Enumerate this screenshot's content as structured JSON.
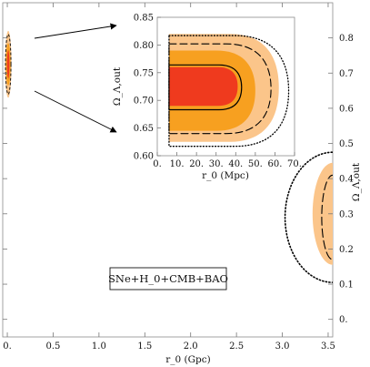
{
  "chart_data": [
    {
      "type": "contour",
      "id": "main",
      "xlabel": "r_0 (Gpc)",
      "ylabel": "Ω_Λ,out",
      "xlim": [
        -0.05,
        3.55
      ],
      "ylim": [
        -0.05,
        0.9
      ],
      "x_ticks": [
        "0.",
        "0.5",
        "1.0",
        "1.5",
        "2.0",
        "2.5",
        "3.0",
        "3.5"
      ],
      "x_tick_values": [
        0,
        0.5,
        1.0,
        1.5,
        2.0,
        2.5,
        3.0,
        3.5
      ],
      "y_ticks": [
        "0.",
        "0.1",
        "0.2",
        "0.3",
        "0.4",
        "0.5",
        "0.6",
        "0.7",
        "0.8"
      ],
      "y_tick_values": [
        0,
        0.1,
        0.2,
        0.3,
        0.4,
        0.5,
        0.6,
        0.7,
        0.8
      ],
      "y_axis_side": "right",
      "annotation": "SNe+H_0+CMB+BAO",
      "regions": [
        {
          "name": "near-zero-light",
          "cx": 0.01,
          "cy": 0.725,
          "rx": 0.035,
          "ry": 0.095,
          "color": "#fbc58a"
        },
        {
          "name": "near-zero-mid",
          "cx": 0.01,
          "cy": 0.725,
          "rx": 0.025,
          "ry": 0.06,
          "color": "#f7a020"
        },
        {
          "name": "near-zero-dark",
          "cx": 0.01,
          "cy": 0.725,
          "rx": 0.013,
          "ry": 0.04,
          "color": "#ef3a1e"
        },
        {
          "name": "large-r0-light",
          "center_r0": 3.55,
          "center_omega": 0.3,
          "r0_extent": 0.22,
          "omega_extent": 0.145,
          "color": "#fbc58a"
        },
        {
          "name": "large-r0-dashed",
          "center_r0": 3.55,
          "center_omega": 0.29,
          "r0_extent": 0.12,
          "omega_extent": 0.12,
          "style": "dashed"
        },
        {
          "name": "large-r0-dotted",
          "center_r0": 3.55,
          "center_omega": 0.29,
          "r0_extent": 0.52,
          "omega_extent": 0.185,
          "style": "dotted"
        }
      ]
    },
    {
      "type": "contour",
      "id": "inset",
      "xlabel": "r_0 (Mpc)",
      "ylabel": "Ω_Λ,out",
      "xlim": [
        0,
        70
      ],
      "ylim": [
        0.6,
        0.85
      ],
      "x_ticks": [
        "0.",
        "10.",
        "20.",
        "30.",
        "40.",
        "50.",
        "60.",
        "70."
      ],
      "x_tick_values": [
        0,
        10,
        20,
        30,
        40,
        50,
        60,
        70
      ],
      "y_ticks": [
        "0.60",
        "0.65",
        "0.70",
        "0.75",
        "0.80",
        "0.85"
      ],
      "y_tick_values": [
        0.6,
        0.65,
        0.7,
        0.75,
        0.8,
        0.85
      ],
      "y_axis_side": "left",
      "regions": [
        {
          "name": "inset-light",
          "x_start": 6,
          "x_end": 62,
          "y_low": 0.625,
          "y_high": 0.82,
          "color": "#fbc58a"
        },
        {
          "name": "inset-mid",
          "x_start": 6,
          "x_end": 50,
          "y_low": 0.645,
          "y_high": 0.79,
          "color": "#f7a020"
        },
        {
          "name": "inset-dark",
          "x_start": 6,
          "x_end": 41,
          "y_low": 0.69,
          "y_high": 0.76,
          "color": "#ef3a1e"
        }
      ],
      "lines": [
        {
          "name": "inset-solid",
          "style": "solid",
          "x_start": 6,
          "x_end": 43,
          "y_low": 0.683,
          "y_high": 0.764
        },
        {
          "name": "inset-dashed",
          "style": "dashed",
          "x_start": 6,
          "x_end": 58,
          "y_low": 0.64,
          "y_high": 0.802
        },
        {
          "name": "inset-dotted",
          "style": "dotted",
          "x_start": 6,
          "x_end": 67,
          "y_low": 0.617,
          "y_high": 0.817
        }
      ]
    }
  ],
  "colors": {
    "light": "#fbc58a",
    "mid": "#f7a020",
    "dark": "#ef3a1e",
    "axis": "#777777"
  }
}
